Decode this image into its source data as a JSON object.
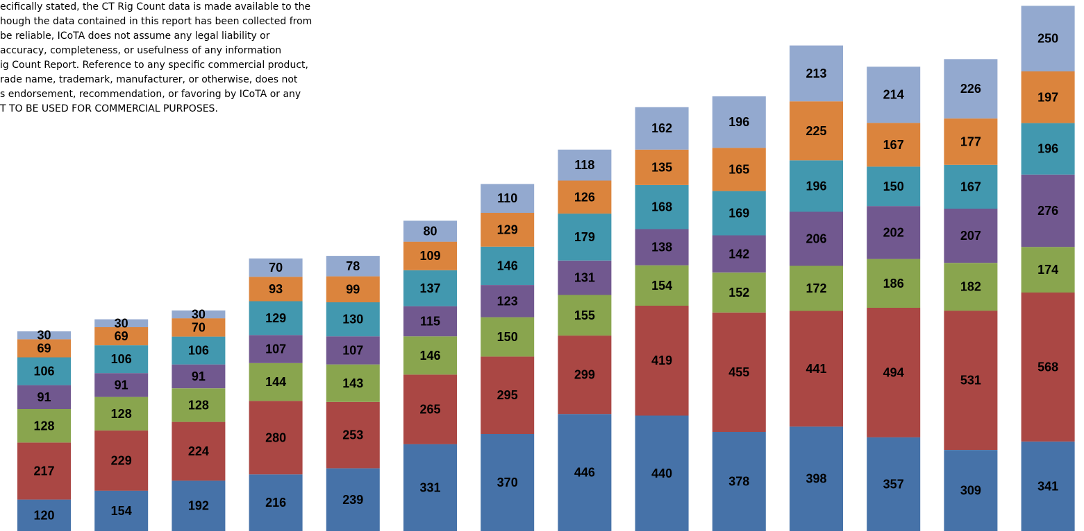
{
  "disclaimer": {
    "lines": [
      "ecifically stated, the CT Rig Count data is made available to the",
      "hough the data contained in this report has been collected from",
      "be reliable, ICoTA does not assume any legal liability or",
      " accuracy, completeness, or usefulness of any information",
      "ig Count Report. Reference to any specific commercial product,",
      "rade name, trademark, manufacturer, or otherwise, does not",
      "s endorsement, recommendation, or favoring by ICoTA or any",
      "T TO BE USED FOR COMMERCIAL PURPOSES."
    ]
  },
  "chart_data": {
    "type": "bar",
    "stacked": true,
    "categories": [
      "",
      "",
      "",
      "",
      "",
      "",
      "",
      "",
      "",
      "",
      "",
      "",
      "",
      ""
    ],
    "series": [
      {
        "color": "#4672A8",
        "values": [
          120,
          154,
          192,
          216,
          239,
          331,
          370,
          446,
          440,
          378,
          398,
          357,
          309,
          341
        ]
      },
      {
        "color": "#AA4744",
        "values": [
          217,
          229,
          224,
          280,
          253,
          265,
          295,
          299,
          419,
          455,
          441,
          494,
          531,
          568
        ]
      },
      {
        "color": "#89A54E",
        "values": [
          128,
          128,
          128,
          144,
          143,
          146,
          150,
          155,
          154,
          152,
          172,
          186,
          182,
          174
        ]
      },
      {
        "color": "#71588F",
        "values": [
          91,
          91,
          91,
          107,
          107,
          115,
          123,
          131,
          138,
          142,
          206,
          202,
          207,
          276
        ]
      },
      {
        "color": "#4298AF",
        "values": [
          106,
          106,
          106,
          129,
          130,
          137,
          146,
          179,
          168,
          169,
          196,
          150,
          167,
          196
        ]
      },
      {
        "color": "#DB843D",
        "values": [
          69,
          69,
          70,
          93,
          99,
          109,
          129,
          126,
          135,
          165,
          225,
          167,
          177,
          197
        ]
      },
      {
        "color": "#93A9CF",
        "values": [
          30,
          30,
          30,
          70,
          78,
          80,
          110,
          118,
          162,
          196,
          213,
          214,
          226,
          250
        ]
      }
    ],
    "legend": "none",
    "grid": false
  }
}
